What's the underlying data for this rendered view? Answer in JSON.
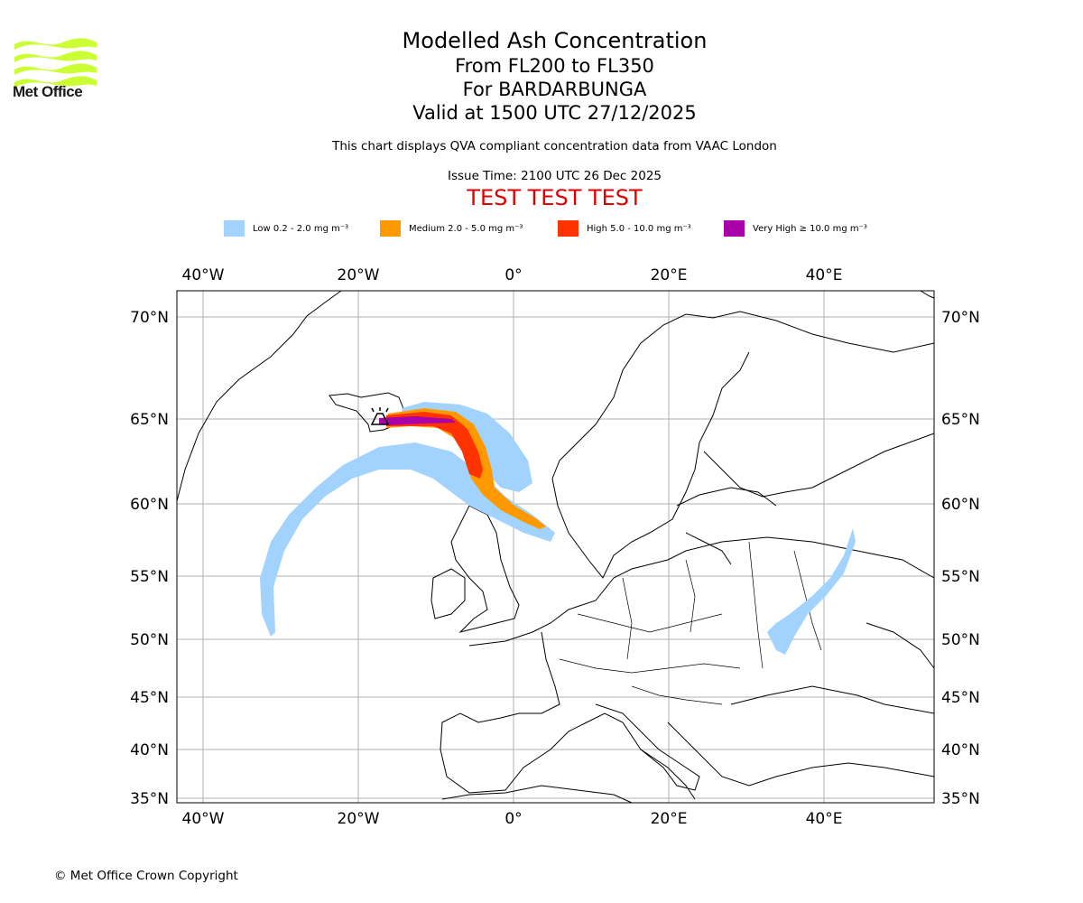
{
  "logo": {
    "text": "Met Office",
    "color": "#ccff33"
  },
  "title": {
    "main": "Modelled Ash Concentration",
    "levels": "From FL200 to FL350",
    "volcano": "For BARDARBUNGA",
    "valid": "Valid at 1500 UTC 27/12/2025",
    "note": "This chart displays QVA compliant concentration data from VAAC London",
    "issue": "Issue Time: 2100 UTC 26 Dec 2025",
    "test": "TEST TEST TEST"
  },
  "legend": [
    {
      "label": "Low 0.2 - 2.0 mg m⁻³",
      "color": "#a2d3ff"
    },
    {
      "label": "Medium 2.0 - 5.0 mg m⁻³",
      "color": "#ff9900"
    },
    {
      "label": "High 5.0 - 10.0 mg m⁻³",
      "color": "#ff3300"
    },
    {
      "label": "Very High ≥ 10.0 mg m⁻³",
      "color": "#aa00aa"
    }
  ],
  "map": {
    "lon_ticks": [
      "40°W",
      "20°W",
      "0°",
      "20°E",
      "40°E"
    ],
    "lat_ticks": [
      "70°N",
      "65°N",
      "60°N",
      "55°N",
      "50°N",
      "45°N",
      "40°N",
      "35°N"
    ]
  },
  "footer": "© Met Office Crown Copyright"
}
